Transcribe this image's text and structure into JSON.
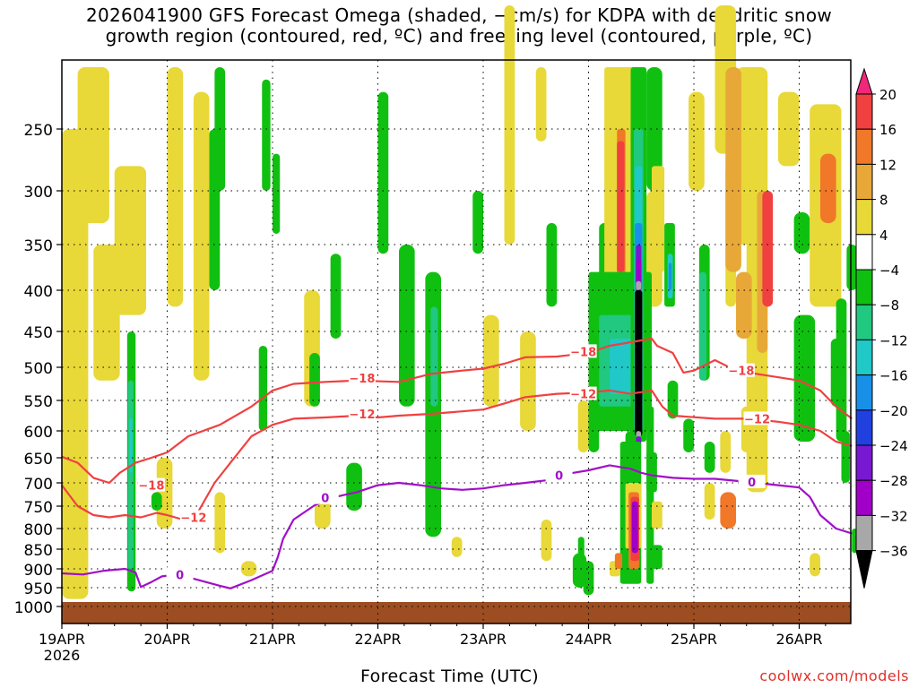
{
  "chart_data": {
    "type": "heatmap",
    "title": [
      "2026041900 GFS Forecast Omega (shaded, −cm/s) for KDPA with dendritic snow",
      "growth region (contoured, red, ºC) and freezing level (contoured, purple, ºC)"
    ],
    "xlabel": "Forecast Time (UTC)",
    "ylabel": "",
    "x_start_label": [
      "19APR",
      "2026"
    ],
    "x_ticks": [
      "19APR",
      "20APR",
      "21APR",
      "22APR",
      "23APR",
      "24APR",
      "25APR",
      "26APR"
    ],
    "xlim_days": [
      0,
      7.5
    ],
    "y_ticks": [
      250,
      300,
      350,
      400,
      450,
      500,
      550,
      600,
      650,
      700,
      750,
      800,
      850,
      900,
      950,
      1000
    ],
    "ylim": [
      1020,
      200
    ],
    "grid": true,
    "colorbar": {
      "labels": [
        "20",
        "16",
        "12",
        "8",
        "4",
        "−4",
        "−8",
        "−12",
        "−16",
        "−20",
        "−24",
        "−28",
        "−32",
        "−36"
      ],
      "colors": [
        "#f0287a",
        "#f04040",
        "#f07828",
        "#e8a838",
        "#e8d838",
        "#ffffff",
        "#10c010",
        "#20c880",
        "#20c8c8",
        "#1890e8",
        "#2040e0",
        "#7818d0",
        "#a000c8",
        "#a8a8a8",
        "#000000"
      ]
    },
    "contour_labels": {
      "dgz_upper": "−18",
      "dgz_lower": "−12",
      "freezing": "0"
    },
    "colors": {
      "dgz": "#f04040",
      "freezing": "#a010c8",
      "ground": "#9c4e22"
    }
  },
  "credit": "coolwx.com/models"
}
